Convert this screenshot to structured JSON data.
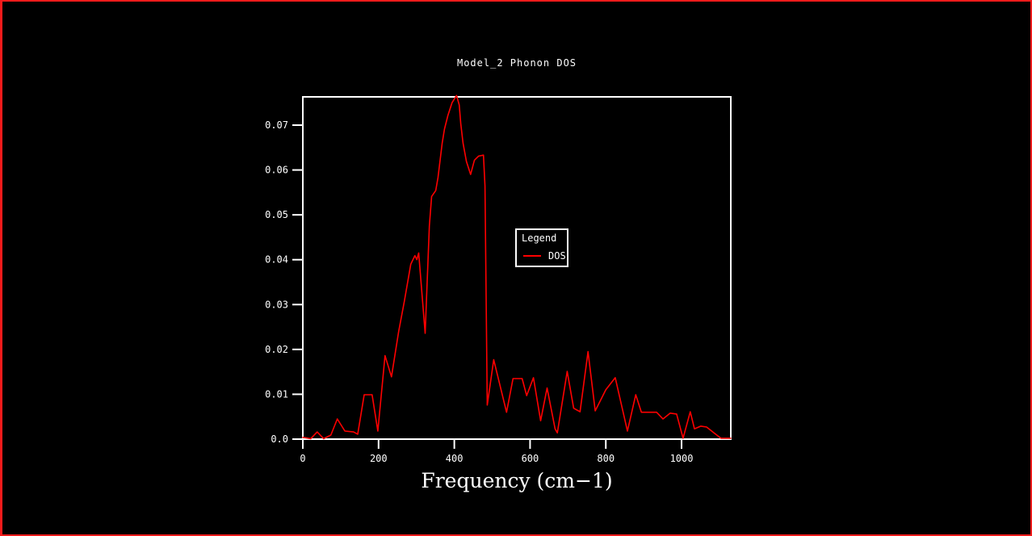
{
  "frame": {
    "border_color": "#f51b1b",
    "background": "#000000"
  },
  "chart_data": {
    "type": "line",
    "title": "Model_2 Phonon DOS",
    "xlabel": "Frequency (cm−1)",
    "ylabel": "",
    "xlim": [
      0,
      1130
    ],
    "ylim": [
      0,
      0.0763
    ],
    "grid": false,
    "axis_color": "#ffffff",
    "legend_position": "inside-center",
    "x_ticks": {
      "values": [
        0,
        200,
        400,
        600,
        800,
        1000
      ],
      "labels": [
        "0",
        "200",
        "400",
        "600",
        "800",
        "1000"
      ]
    },
    "y_ticks": {
      "values": [
        0,
        0.01,
        0.02,
        0.03,
        0.04,
        0.05,
        0.06,
        0.07
      ],
      "labels": [
        "0.0",
        "0.01",
        "0.02",
        "0.03",
        "0.04",
        "0.05",
        "0.06",
        "0.07"
      ]
    },
    "legend": {
      "title": "Legend",
      "entries": [
        {
          "label": "DOS",
          "color": "#ff0000"
        }
      ]
    },
    "series": [
      {
        "name": "DOS",
        "color": "#ff0000",
        "points": [
          [
            0,
            0.0004
          ],
          [
            21,
            0.0001
          ],
          [
            38,
            0.0016
          ],
          [
            55,
            0.0001
          ],
          [
            74,
            0.0009
          ],
          [
            91,
            0.0045
          ],
          [
            111,
            0.0018
          ],
          [
            134,
            0.0016
          ],
          [
            145,
            0.0011
          ],
          [
            162,
            0.0099
          ],
          [
            183,
            0.0099
          ],
          [
            198,
            0.0018
          ],
          [
            217,
            0.0186
          ],
          [
            234,
            0.0139
          ],
          [
            253,
            0.024
          ],
          [
            268,
            0.0307
          ],
          [
            285,
            0.039
          ],
          [
            296,
            0.0409
          ],
          [
            301,
            0.04
          ],
          [
            306,
            0.0415
          ],
          [
            323,
            0.0236
          ],
          [
            334,
            0.0475
          ],
          [
            340,
            0.0541
          ],
          [
            351,
            0.0554
          ],
          [
            357,
            0.0583
          ],
          [
            368,
            0.066
          ],
          [
            374,
            0.0691
          ],
          [
            383,
            0.0721
          ],
          [
            394,
            0.075
          ],
          [
            406,
            0.0766
          ],
          [
            413,
            0.0745
          ],
          [
            417,
            0.0703
          ],
          [
            423,
            0.066
          ],
          [
            432,
            0.0619
          ],
          [
            443,
            0.059
          ],
          [
            453,
            0.0622
          ],
          [
            464,
            0.0631
          ],
          [
            477,
            0.0633
          ],
          [
            481,
            0.0564
          ],
          [
            487,
            0.0076
          ],
          [
            504,
            0.0177
          ],
          [
            538,
            0.006
          ],
          [
            555,
            0.0135
          ],
          [
            579,
            0.0135
          ],
          [
            591,
            0.0097
          ],
          [
            609,
            0.0137
          ],
          [
            628,
            0.0041
          ],
          [
            645,
            0.0114
          ],
          [
            666,
            0.0023
          ],
          [
            672,
            0.0014
          ],
          [
            698,
            0.0151
          ],
          [
            715,
            0.0069
          ],
          [
            732,
            0.0061
          ],
          [
            753,
            0.0195
          ],
          [
            772,
            0.0063
          ],
          [
            800,
            0.011
          ],
          [
            825,
            0.0137
          ],
          [
            857,
            0.0018
          ],
          [
            879,
            0.0099
          ],
          [
            894,
            0.006
          ],
          [
            934,
            0.006
          ],
          [
            951,
            0.0045
          ],
          [
            970,
            0.0058
          ],
          [
            987,
            0.0056
          ],
          [
            1004,
            0.0002
          ],
          [
            1023,
            0.0061
          ],
          [
            1034,
            0.0023
          ],
          [
            1051,
            0.0029
          ],
          [
            1066,
            0.0027
          ],
          [
            1087,
            0.0013
          ],
          [
            1104,
            0.0002
          ],
          [
            1130,
            0.0002
          ]
        ]
      }
    ]
  }
}
